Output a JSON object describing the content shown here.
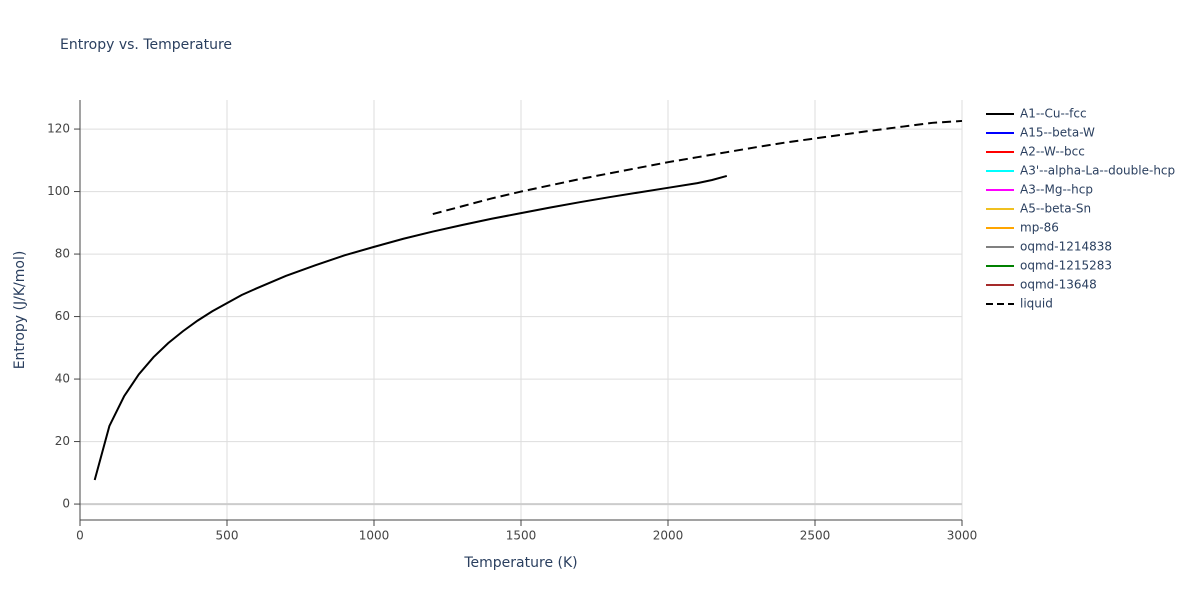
{
  "chart_data": {
    "type": "line",
    "title": "Entropy vs. Temperature",
    "x_label": "Temperature (K)",
    "y_label": "Entropy (J/K/mol)",
    "xlim": [
      0,
      3000
    ],
    "xticks": [
      0,
      500,
      1000,
      1500,
      2000,
      2500,
      3000
    ],
    "ylim": [
      -5.1,
      129.3
    ],
    "yticks": [
      0,
      20,
      40,
      60,
      80,
      100,
      120
    ],
    "grid": true,
    "legend": "right",
    "series": [
      {
        "name": "A1--Cu--fcc",
        "color": "#000000",
        "dash": "solid",
        "x": [
          50,
          100,
          150,
          200,
          250,
          300,
          350,
          400,
          450,
          500,
          550,
          600,
          700,
          800,
          900,
          1000,
          1100,
          1200,
          1300,
          1400,
          1500,
          1600,
          1700,
          1800,
          1900,
          2000,
          2100,
          2150,
          2200
        ],
        "values": [
          7.7,
          25,
          34.5,
          41.5,
          47,
          51.5,
          55.3,
          58.7,
          61.7,
          64.3,
          66.9,
          69,
          73,
          76.4,
          79.6,
          82.3,
          84.9,
          87.2,
          89.3,
          91.3,
          93.1,
          94.9,
          96.6,
          98.2,
          99.7,
          101.2,
          102.7,
          103.7,
          105
        ]
      },
      {
        "name": "A15--beta-W",
        "color": "#0000ff",
        "dash": "solid",
        "x": [],
        "values": []
      },
      {
        "name": "A2--W--bcc",
        "color": "#ff0000",
        "dash": "solid",
        "x": [],
        "values": []
      },
      {
        "name": "A3'--alpha-La--double-hcp",
        "color": "#00ffff",
        "dash": "solid",
        "x": [],
        "values": []
      },
      {
        "name": "A3--Mg--hcp",
        "color": "#ff00ff",
        "dash": "solid",
        "x": [],
        "values": []
      },
      {
        "name": "A5--beta-Sn",
        "color": "#f0c020",
        "dash": "solid",
        "x": [],
        "values": []
      },
      {
        "name": "mp-86",
        "color": "#ffa500",
        "dash": "solid",
        "x": [],
        "values": []
      },
      {
        "name": "oqmd-1214838",
        "color": "#808080",
        "dash": "solid",
        "x": [],
        "values": []
      },
      {
        "name": "oqmd-1215283",
        "color": "#008000",
        "dash": "solid",
        "x": [],
        "values": []
      },
      {
        "name": "oqmd-13648",
        "color": "#a52a2a",
        "dash": "solid",
        "x": [],
        "values": []
      },
      {
        "name": "liquid",
        "color": "#000000",
        "dash": "dash",
        "x": [
          1200,
          1300,
          1400,
          1500,
          1600,
          1700,
          1800,
          1900,
          2000,
          2100,
          2200,
          2300,
          2400,
          2500,
          2600,
          2700,
          2800,
          2900,
          3000
        ],
        "values": [
          92.8,
          95.3,
          97.8,
          100,
          102,
          104,
          105.8,
          107.6,
          109.4,
          111,
          112.6,
          114.2,
          115.7,
          117,
          118.3,
          119.6,
          120.8,
          122,
          122.6
        ]
      }
    ]
  }
}
